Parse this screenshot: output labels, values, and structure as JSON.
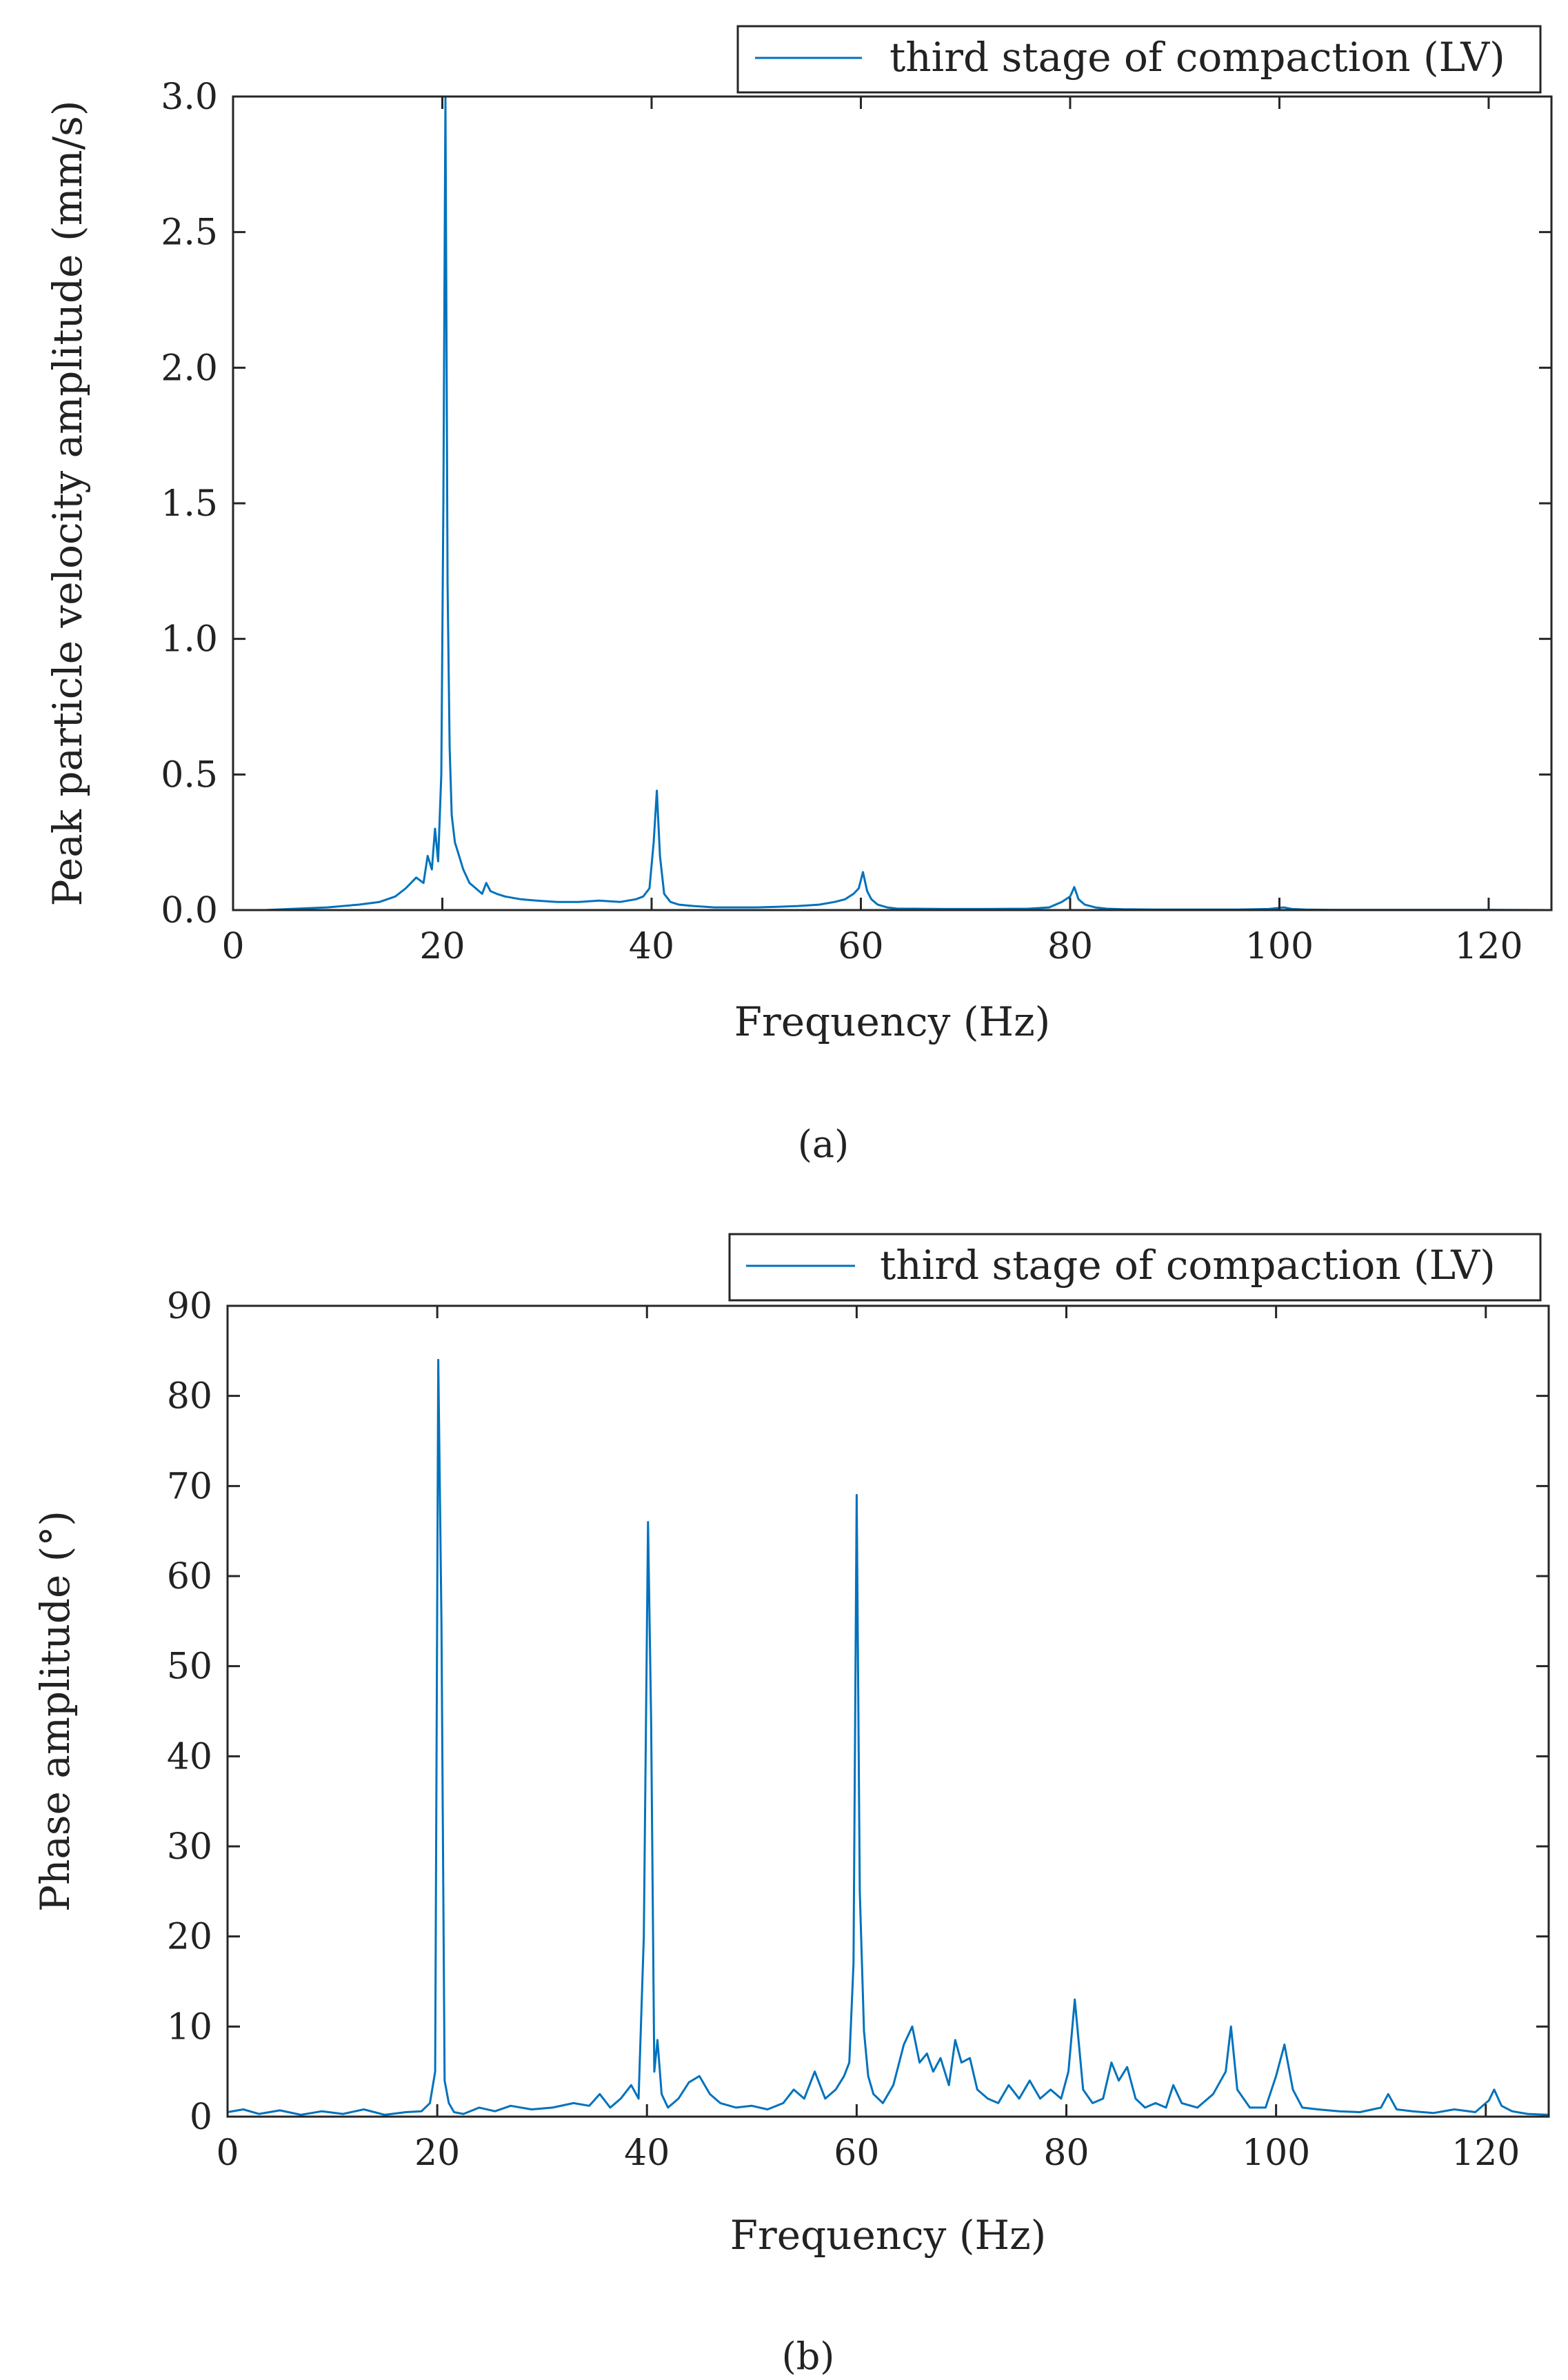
{
  "chart_data": [
    {
      "type": "line",
      "caption": "(a)",
      "legend": [
        "third stage of compaction (LV)"
      ],
      "legend_position": "top-right, above plot",
      "xlabel": "Frequency (Hz)",
      "ylabel": "Peak particle velocity amplitude (mm/s)",
      "xlim": [
        0,
        126
      ],
      "ylim": [
        0,
        3.0
      ],
      "xticks": [
        0,
        20,
        40,
        60,
        80,
        100,
        120
      ],
      "xtick_labels": [
        "0",
        "20",
        "40",
        "60",
        "80",
        "100",
        "120"
      ],
      "yticks": [
        0,
        0.5,
        1.0,
        1.5,
        2.0,
        2.5,
        3.0
      ],
      "ytick_labels": [
        "0.0",
        "0.5",
        "1.0",
        "1.5",
        "2.0",
        "2.5",
        "3.0"
      ],
      "grid": false,
      "color": "#0072BD",
      "series": [
        {
          "name": "third stage of compaction (LV)",
          "x": [
            0.5,
            3,
            6,
            9,
            12,
            14,
            15.5,
            16.5,
            17.5,
            18.2,
            18.6,
            19.0,
            19.3,
            19.6,
            19.9,
            20.1,
            20.3,
            20.5,
            20.7,
            20.9,
            21.2,
            21.6,
            22.0,
            22.6,
            23.2,
            23.8,
            24.2,
            24.6,
            25.2,
            26,
            27.5,
            29,
            31,
            33,
            35,
            37,
            38.5,
            39.2,
            39.8,
            40.2,
            40.5,
            40.8,
            41.2,
            41.8,
            42.6,
            44,
            46,
            48,
            50,
            52,
            54,
            56,
            57.5,
            58.5,
            59.3,
            59.8,
            60.2,
            60.6,
            61.0,
            61.6,
            62.5,
            63.5,
            65,
            68,
            72,
            76,
            78,
            79.2,
            80.0,
            80.4,
            80.8,
            81.4,
            82.4,
            83.5,
            85,
            88,
            92,
            96,
            99,
            100.4,
            101.2,
            102.5,
            105,
            110,
            115,
            120,
            126
          ],
          "y": [
            0.0,
            0.0,
            0.005,
            0.01,
            0.02,
            0.03,
            0.05,
            0.08,
            0.12,
            0.1,
            0.2,
            0.15,
            0.3,
            0.18,
            0.5,
            1.5,
            3.0,
            1.2,
            0.6,
            0.35,
            0.25,
            0.2,
            0.15,
            0.1,
            0.08,
            0.06,
            0.1,
            0.07,
            0.06,
            0.05,
            0.04,
            0.035,
            0.03,
            0.03,
            0.035,
            0.03,
            0.04,
            0.05,
            0.08,
            0.25,
            0.44,
            0.2,
            0.06,
            0.03,
            0.02,
            0.015,
            0.01,
            0.01,
            0.01,
            0.012,
            0.015,
            0.02,
            0.03,
            0.04,
            0.06,
            0.08,
            0.14,
            0.07,
            0.04,
            0.02,
            0.01,
            0.005,
            0.005,
            0.004,
            0.004,
            0.005,
            0.01,
            0.03,
            0.05,
            0.085,
            0.04,
            0.02,
            0.01,
            0.005,
            0.003,
            0.002,
            0.002,
            0.002,
            0.004,
            0.01,
            0.004,
            0.002,
            0.001,
            0.001,
            0.001,
            0.001,
            0.0
          ]
        }
      ]
    },
    {
      "type": "line",
      "caption": "(b)",
      "legend": [
        "third stage of compaction (LV)"
      ],
      "legend_position": "top-right, above plot",
      "xlabel": "Frequency (Hz)",
      "ylabel": "Phase amplitude (°)",
      "xlim": [
        0,
        126
      ],
      "ylim": [
        0,
        90
      ],
      "xticks": [
        0,
        20,
        40,
        60,
        80,
        100,
        120
      ],
      "xtick_labels": [
        "0",
        "20",
        "40",
        "60",
        "80",
        "100",
        "120"
      ],
      "yticks": [
        0,
        10,
        20,
        30,
        40,
        50,
        60,
        70,
        80,
        90
      ],
      "ytick_labels": [
        "0",
        "10",
        "20",
        "30",
        "40",
        "50",
        "60",
        "70",
        "80",
        "90"
      ],
      "grid": false,
      "color": "#0072BD",
      "series": [
        {
          "name": "third stage of compaction (LV)",
          "x": [
            0,
            1.5,
            3,
            5,
            7,
            9,
            11,
            13,
            15,
            17,
            18.5,
            19.3,
            19.8,
            20.1,
            20.4,
            20.7,
            21.1,
            21.6,
            22.5,
            24,
            25.5,
            27,
            29,
            31,
            33,
            34.5,
            35.5,
            36.5,
            37.5,
            38.5,
            39.2,
            39.7,
            40.1,
            40.4,
            40.7,
            41.0,
            41.4,
            42,
            43,
            44,
            45,
            46,
            47,
            48.5,
            50,
            51.5,
            53,
            54,
            55,
            56,
            57,
            58,
            58.8,
            59.3,
            59.7,
            60.0,
            60.3,
            60.7,
            61.1,
            61.6,
            62.5,
            63.5,
            64.5,
            65.3,
            66,
            66.7,
            67.3,
            68,
            68.8,
            69.4,
            70,
            70.8,
            71.5,
            72.5,
            73.5,
            74.5,
            75.5,
            76.5,
            77.5,
            78.5,
            79.5,
            80.2,
            80.8,
            81.6,
            82.5,
            83.5,
            84.3,
            85,
            85.8,
            86.6,
            87.5,
            88.5,
            89.5,
            90.2,
            91,
            92.5,
            94,
            95.2,
            95.7,
            96.3,
            97.5,
            99,
            100.0,
            100.8,
            101.6,
            102.5,
            104,
            106,
            108,
            110,
            110.7,
            111.5,
            113,
            115,
            117,
            119,
            120.3,
            120.8,
            121.5,
            122.5,
            124,
            126
          ],
          "y": [
            0.5,
            0.8,
            0.3,
            0.7,
            0.2,
            0.6,
            0.3,
            0.8,
            0.2,
            0.5,
            0.6,
            1.5,
            5,
            84,
            55,
            4,
            1.5,
            0.5,
            0.3,
            1.0,
            0.6,
            1.2,
            0.8,
            1.0,
            1.5,
            1.2,
            2.5,
            1.0,
            2.0,
            3.5,
            2.0,
            20,
            66,
            44,
            5,
            8.5,
            2.5,
            1.0,
            2.0,
            3.8,
            4.5,
            2.5,
            1.5,
            1.0,
            1.2,
            0.8,
            1.5,
            3.0,
            2.0,
            5.0,
            2.0,
            3.0,
            4.5,
            6.0,
            17,
            69,
            25,
            9.5,
            4.5,
            2.5,
            1.5,
            3.5,
            8.0,
            10,
            6.0,
            7.0,
            5.0,
            6.5,
            3.5,
            8.5,
            6.0,
            6.5,
            3.0,
            2.0,
            1.5,
            3.5,
            2.0,
            4.0,
            2.0,
            3.0,
            2.0,
            5.0,
            13,
            3.0,
            1.5,
            2.0,
            6.0,
            4.0,
            5.5,
            2.0,
            1.0,
            1.5,
            1.0,
            3.5,
            1.5,
            1.0,
            2.5,
            5.0,
            10,
            3.0,
            1.0,
            1.0,
            4.5,
            8.0,
            3.0,
            1.0,
            0.8,
            0.6,
            0.5,
            1.0,
            2.5,
            0.8,
            0.6,
            0.4,
            0.8,
            0.5,
            1.8,
            3.0,
            1.2,
            0.6,
            0.3,
            0.2
          ]
        }
      ]
    }
  ]
}
